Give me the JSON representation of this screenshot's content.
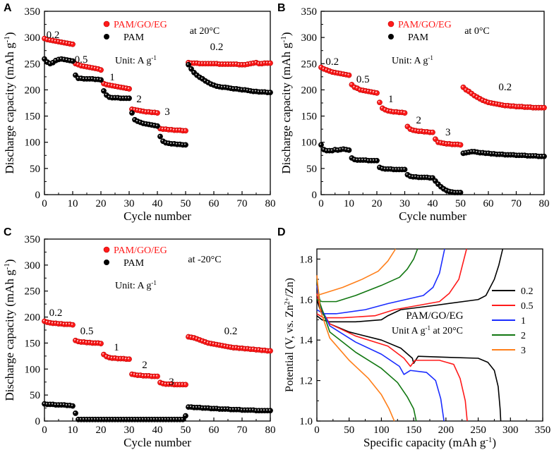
{
  "chart_data": [
    {
      "panel": "A",
      "type": "scatter",
      "xlabel": "Cycle number",
      "ylabel": "Discharge capacity (mAh g-1)",
      "xlim": [
        0,
        80
      ],
      "ylim": [
        0,
        350
      ],
      "xticks": [
        0,
        10,
        20,
        30,
        40,
        50,
        60,
        70,
        80
      ],
      "yticks": [
        0,
        50,
        100,
        150,
        200,
        250,
        300,
        350
      ],
      "legend": [
        "PAM/GO/EG",
        "PAM"
      ],
      "temperature": "at 20°C",
      "unit": "Unit: A g-1",
      "rate_labels": [
        "0.2",
        "0.5",
        "1",
        "2",
        "3",
        "0.2"
      ],
      "series": [
        {
          "name": "PAM/GO/EG",
          "color": "#ff1a1a",
          "values": [
            298,
            296,
            295,
            294,
            293,
            292,
            291,
            290,
            289,
            288,
            287,
            250,
            248,
            246,
            245,
            244,
            243,
            242,
            241,
            240,
            238,
            212,
            210,
            209,
            208,
            207,
            206,
            205,
            204,
            203,
            202,
            163,
            162,
            161,
            160,
            159,
            158,
            158,
            157,
            157,
            156,
            126,
            125,
            125,
            124,
            124,
            123,
            123,
            123,
            122,
            122,
            252,
            251,
            251,
            251,
            250,
            250,
            250,
            250,
            250,
            250,
            250,
            249,
            249,
            249,
            249,
            249,
            249,
            249,
            248,
            248,
            248,
            249,
            250,
            251,
            252,
            250,
            250,
            251,
            251,
            251
          ]
        },
        {
          "name": "PAM",
          "color": "#000000",
          "values": [
            259,
            253,
            250,
            252,
            256,
            258,
            259,
            258,
            257,
            256,
            255,
            228,
            222,
            222,
            221,
            221,
            221,
            221,
            220,
            220,
            219,
            198,
            190,
            186,
            185,
            185,
            185,
            184,
            184,
            184,
            184,
            156,
            143,
            140,
            138,
            136,
            135,
            134,
            133,
            132,
            131,
            111,
            102,
            99,
            98,
            97,
            97,
            96,
            96,
            95,
            95,
            248,
            240,
            233,
            228,
            224,
            221,
            217,
            214,
            211,
            209,
            207,
            206,
            205,
            205,
            204,
            203,
            202,
            202,
            201,
            200,
            200,
            199,
            198,
            197,
            197,
            196,
            196,
            196,
            195,
            195
          ]
        }
      ]
    },
    {
      "panel": "B",
      "type": "scatter",
      "xlabel": "Cycle number",
      "ylabel": "Discharge capacity (mAh g-1)",
      "xlim": [
        0,
        80
      ],
      "ylim": [
        0,
        350
      ],
      "xticks": [
        0,
        10,
        20,
        30,
        40,
        50,
        60,
        70,
        80
      ],
      "yticks": [
        0,
        50,
        100,
        150,
        200,
        250,
        300,
        350
      ],
      "legend": [
        "PAM/GO/EG",
        "PAM"
      ],
      "temperature": "at 0°C",
      "unit": "Unit: A g-1",
      "rate_labels": [
        "0.2",
        "0.5",
        "1",
        "2",
        "3",
        "0.2"
      ],
      "series": [
        {
          "name": "PAM/GO/EG",
          "color": "#ff1a1a",
          "values": [
            243,
            240,
            238,
            236,
            234,
            233,
            232,
            231,
            230,
            229,
            228,
            210,
            205,
            203,
            200,
            199,
            198,
            197,
            196,
            195,
            194,
            176,
            165,
            162,
            160,
            159,
            158,
            158,
            157,
            157,
            156,
            130,
            125,
            123,
            122,
            121,
            121,
            120,
            120,
            119,
            119,
            106,
            100,
            99,
            98,
            97,
            97,
            96,
            96,
            96,
            95,
            205,
            200,
            197,
            193,
            189,
            186,
            183,
            180,
            178,
            176,
            175,
            174,
            173,
            172,
            171,
            170,
            170,
            169,
            169,
            168,
            168,
            168,
            167,
            167,
            167,
            166,
            166,
            166,
            166,
            166
          ]
        },
        {
          "name": "PAM",
          "color": "#000000",
          "values": [
            95,
            86,
            84,
            84,
            84,
            86,
            85,
            86,
            87,
            86,
            85,
            70,
            67,
            66,
            66,
            66,
            66,
            65,
            65,
            65,
            65,
            52,
            50,
            49,
            49,
            49,
            48,
            48,
            48,
            48,
            48,
            38,
            35,
            34,
            34,
            33,
            33,
            33,
            33,
            32,
            32,
            26,
            20,
            15,
            11,
            8,
            6,
            5,
            4,
            4,
            4,
            79,
            80,
            81,
            82,
            82,
            81,
            80,
            80,
            79,
            79,
            78,
            78,
            77,
            77,
            77,
            76,
            76,
            76,
            76,
            75,
            75,
            75,
            75,
            74,
            74,
            74,
            74,
            73,
            73,
            73
          ]
        }
      ]
    },
    {
      "panel": "C",
      "type": "scatter",
      "xlabel": "Cycle number",
      "ylabel": "Discharge capacity (mAh g-1)",
      "xlim": [
        0,
        80
      ],
      "ylim": [
        0,
        350
      ],
      "xticks": [
        0,
        10,
        20,
        30,
        40,
        50,
        60,
        70,
        80
      ],
      "yticks": [
        0,
        50,
        100,
        150,
        200,
        250,
        300,
        350
      ],
      "legend": [
        "PAM/GO/EG",
        "PAM"
      ],
      "temperature": "at -20°C",
      "unit": "Unit: A g-1",
      "rate_labels": [
        "0.2",
        "0.5",
        "1",
        "2",
        "3",
        "0.2"
      ],
      "series": [
        {
          "name": "PAM/GO/EG",
          "color": "#ff1a1a",
          "values": [
            192,
            190,
            189,
            188,
            188,
            187,
            187,
            186,
            186,
            186,
            185,
            155,
            153,
            152,
            152,
            151,
            151,
            150,
            150,
            150,
            149,
            128,
            124,
            122,
            121,
            121,
            120,
            120,
            120,
            119,
            119,
            90,
            89,
            88,
            88,
            87,
            87,
            87,
            86,
            86,
            86,
            74,
            72,
            71,
            71,
            71,
            70,
            70,
            70,
            70,
            70,
            162,
            161,
            160,
            158,
            156,
            154,
            152,
            150,
            149,
            148,
            147,
            146,
            145,
            144,
            143,
            142,
            141,
            141,
            140,
            140,
            139,
            139,
            138,
            138,
            137,
            137,
            136,
            136,
            135,
            135
          ]
        },
        {
          "name": "PAM",
          "color": "#000000",
          "values": [
            33,
            32,
            32,
            32,
            31,
            31,
            31,
            31,
            30,
            30,
            29,
            15,
            3,
            3,
            3,
            3,
            3,
            3,
            3,
            3,
            3,
            3,
            3,
            3,
            3,
            3,
            3,
            3,
            3,
            3,
            3,
            3,
            3,
            3,
            3,
            3,
            3,
            3,
            3,
            3,
            3,
            3,
            3,
            3,
            3,
            3,
            3,
            3,
            3,
            3,
            10,
            27,
            27,
            26,
            26,
            26,
            25,
            25,
            25,
            24,
            24,
            24,
            23,
            23,
            23,
            23,
            22,
            22,
            22,
            22,
            21,
            21,
            21,
            21,
            21,
            20,
            20,
            20,
            20,
            20,
            20
          ]
        }
      ]
    },
    {
      "panel": "D",
      "type": "line",
      "xlabel": "Specific capacity (mAh g-1)",
      "ylabel": "Potential (V, vs. Zn2+/Zn)",
      "xlim": [
        0,
        350
      ],
      "ylim": [
        1.0,
        1.85
      ],
      "xticks": [
        0,
        50,
        100,
        150,
        200,
        250,
        300,
        350
      ],
      "yticks": [
        1.0,
        1.2,
        1.4,
        1.6,
        1.8
      ],
      "title": "PAM/GO/EG",
      "annotation": "Unit A g-1 at 20°C",
      "legend": [
        "0.2",
        "0.5",
        "1",
        "2",
        "3"
      ],
      "series": [
        {
          "name": "0.2",
          "color": "#000000",
          "charge": [
            [
              0,
              1.52
            ],
            [
              8,
              1.5
            ],
            [
              20,
              1.49
            ],
            [
              60,
              1.49
            ],
            [
              100,
              1.5
            ],
            [
              110,
              1.52
            ],
            [
              130,
              1.55
            ],
            [
              180,
              1.57
            ],
            [
              250,
              1.6
            ],
            [
              262,
              1.62
            ],
            [
              275,
              1.7
            ],
            [
              282,
              1.77
            ],
            [
              288,
              1.85
            ]
          ],
          "discharge": [
            [
              0,
              1.6
            ],
            [
              5,
              1.55
            ],
            [
              20,
              1.48
            ],
            [
              50,
              1.44
            ],
            [
              100,
              1.4
            ],
            [
              130,
              1.36
            ],
            [
              148,
              1.31
            ],
            [
              150,
              1.285
            ],
            [
              157,
              1.32
            ],
            [
              200,
              1.315
            ],
            [
              250,
              1.31
            ],
            [
              265,
              1.29
            ],
            [
              275,
              1.25
            ],
            [
              281,
              1.17
            ],
            [
              284,
              1.06
            ],
            [
              285,
              1.0
            ]
          ]
        },
        {
          "name": "0.5",
          "color": "#ff1a1a",
          "charge": [
            [
              0,
              1.53
            ],
            [
              10,
              1.51
            ],
            [
              40,
              1.51
            ],
            [
              90,
              1.52
            ],
            [
              120,
              1.55
            ],
            [
              190,
              1.59
            ],
            [
              205,
              1.63
            ],
            [
              220,
              1.7
            ],
            [
              232,
              1.85
            ]
          ],
          "discharge": [
            [
              0,
              1.63
            ],
            [
              5,
              1.56
            ],
            [
              20,
              1.48
            ],
            [
              60,
              1.42
            ],
            [
              110,
              1.37
            ],
            [
              135,
              1.31
            ],
            [
              145,
              1.27
            ],
            [
              152,
              1.3
            ],
            [
              190,
              1.3
            ],
            [
              212,
              1.28
            ],
            [
              222,
              1.21
            ],
            [
              230,
              1.1
            ],
            [
              233,
              1.0
            ]
          ]
        },
        {
          "name": "1",
          "color": "#1a2cff",
          "charge": [
            [
              0,
              1.55
            ],
            [
              10,
              1.53
            ],
            [
              30,
              1.53
            ],
            [
              75,
              1.55
            ],
            [
              110,
              1.58
            ],
            [
              165,
              1.62
            ],
            [
              180,
              1.66
            ],
            [
              190,
              1.73
            ],
            [
              198,
              1.85
            ]
          ],
          "discharge": [
            [
              0,
              1.67
            ],
            [
              5,
              1.57
            ],
            [
              20,
              1.47
            ],
            [
              60,
              1.39
            ],
            [
              100,
              1.33
            ],
            [
              128,
              1.27
            ],
            [
              135,
              1.23
            ],
            [
              145,
              1.25
            ],
            [
              170,
              1.24
            ],
            [
              184,
              1.2
            ],
            [
              192,
              1.11
            ],
            [
              197,
              1.0
            ]
          ]
        },
        {
          "name": "2",
          "color": "#117711",
          "charge": [
            [
              0,
              1.6
            ],
            [
              8,
              1.59
            ],
            [
              30,
              1.59
            ],
            [
              60,
              1.62
            ],
            [
              100,
              1.67
            ],
            [
              128,
              1.71
            ],
            [
              140,
              1.75
            ],
            [
              150,
              1.8
            ],
            [
              156,
              1.85
            ]
          ],
          "discharge": [
            [
              0,
              1.7
            ],
            [
              5,
              1.58
            ],
            [
              20,
              1.44
            ],
            [
              60,
              1.34
            ],
            [
              100,
              1.26
            ],
            [
              125,
              1.19
            ],
            [
              140,
              1.12
            ],
            [
              150,
              1.06
            ],
            [
              154,
              1.0
            ]
          ]
        },
        {
          "name": "3",
          "color": "#ff7f1a",
          "charge": [
            [
              0,
              1.62
            ],
            [
              10,
              1.63
            ],
            [
              40,
              1.66
            ],
            [
              70,
              1.7
            ],
            [
              95,
              1.74
            ],
            [
              110,
              1.79
            ],
            [
              122,
              1.85
            ]
          ],
          "discharge": [
            [
              0,
              1.72
            ],
            [
              5,
              1.55
            ],
            [
              20,
              1.41
            ],
            [
              50,
              1.3
            ],
            [
              80,
              1.21
            ],
            [
              100,
              1.13
            ],
            [
              112,
              1.06
            ],
            [
              120,
              1.0
            ]
          ]
        }
      ]
    }
  ]
}
